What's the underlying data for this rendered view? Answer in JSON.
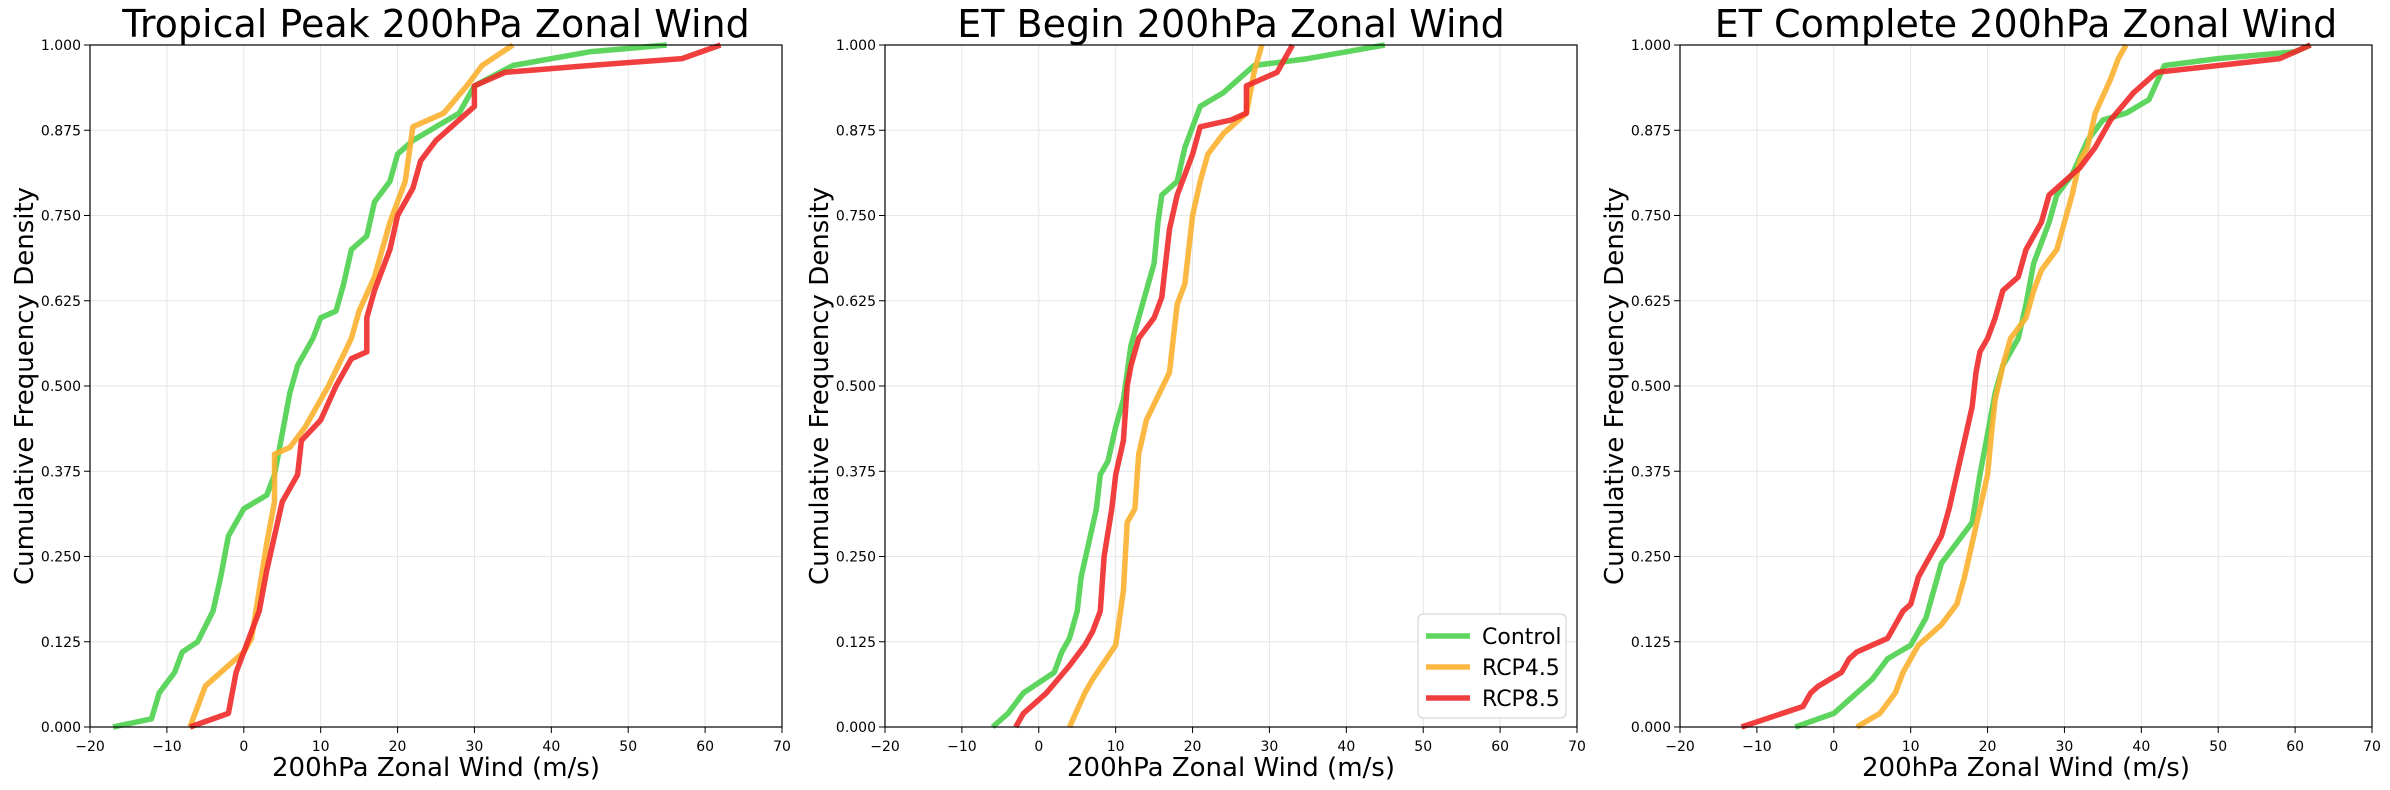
{
  "colors": {
    "Control": "#4cd04c",
    "RCP4.5": "#fbb02d",
    "RCP8.5": "#f02a2a",
    "grid": "#e6e6e6"
  },
  "legend": {
    "placement": "lower right",
    "entries": [
      "Control",
      "RCP4.5",
      "RCP8.5"
    ]
  },
  "chart_data": [
    {
      "type": "line",
      "title": "Tropical Peak 200hPa Zonal Wind",
      "xlabel": "200hPa Zonal Wind (m/s)",
      "ylabel": "Cumulative Frequency Density",
      "xlim": [
        -20,
        70
      ],
      "ylim": [
        0,
        1
      ],
      "xticks": [
        "−20",
        "−10",
        "0",
        "10",
        "20",
        "30",
        "40",
        "50",
        "60",
        "70"
      ],
      "yticks": [
        "0.000",
        "0.125",
        "0.250",
        "0.375",
        "0.500",
        "0.625",
        "0.750",
        "0.875",
        "1.000"
      ],
      "grid": true,
      "series": [
        {
          "name": "Control",
          "points": [
            [
              -17,
              0
            ],
            [
              -12,
              0.012
            ],
            [
              -11,
              0.05
            ],
            [
              -9,
              0.08
            ],
            [
              -8,
              0.11
            ],
            [
              -6,
              0.125
            ],
            [
              -4,
              0.17
            ],
            [
              -3,
              0.22
            ],
            [
              -2,
              0.28
            ],
            [
              -1,
              0.3
            ],
            [
              0,
              0.32
            ],
            [
              3,
              0.34
            ],
            [
              4,
              0.37
            ],
            [
              5,
              0.43
            ],
            [
              6,
              0.49
            ],
            [
              7,
              0.53
            ],
            [
              9,
              0.57
            ],
            [
              10,
              0.6
            ],
            [
              12,
              0.61
            ],
            [
              13,
              0.65
            ],
            [
              14,
              0.7
            ],
            [
              16,
              0.72
            ],
            [
              17,
              0.77
            ],
            [
              19,
              0.8
            ],
            [
              20,
              0.84
            ],
            [
              22,
              0.86
            ],
            [
              25,
              0.88
            ],
            [
              28,
              0.9
            ],
            [
              30,
              0.94
            ],
            [
              35,
              0.97
            ],
            [
              45,
              0.99
            ],
            [
              55,
              1.0
            ]
          ]
        },
        {
          "name": "RCP4.5",
          "points": [
            [
              -7,
              0
            ],
            [
              -5,
              0.06
            ],
            [
              -2,
              0.09
            ],
            [
              0,
              0.11
            ],
            [
              1,
              0.13
            ],
            [
              2,
              0.2
            ],
            [
              3,
              0.27
            ],
            [
              4,
              0.33
            ],
            [
              4,
              0.4
            ],
            [
              6,
              0.41
            ],
            [
              8,
              0.44
            ],
            [
              11,
              0.5
            ],
            [
              14,
              0.57
            ],
            [
              15,
              0.61
            ],
            [
              17,
              0.66
            ],
            [
              19,
              0.74
            ],
            [
              21,
              0.8
            ],
            [
              22,
              0.88
            ],
            [
              26,
              0.9
            ],
            [
              29,
              0.94
            ],
            [
              31,
              0.97
            ],
            [
              35,
              1.0
            ]
          ]
        },
        {
          "name": "RCP8.5",
          "points": [
            [
              -7,
              0
            ],
            [
              -2,
              0.02
            ],
            [
              -1,
              0.08
            ],
            [
              0,
              0.11
            ],
            [
              1,
              0.14
            ],
            [
              2,
              0.17
            ],
            [
              3,
              0.23
            ],
            [
              4,
              0.28
            ],
            [
              5,
              0.33
            ],
            [
              7,
              0.37
            ],
            [
              7.5,
              0.42
            ],
            [
              10,
              0.45
            ],
            [
              12,
              0.5
            ],
            [
              14,
              0.54
            ],
            [
              16,
              0.55
            ],
            [
              16,
              0.6
            ],
            [
              17,
              0.64
            ],
            [
              19,
              0.7
            ],
            [
              20,
              0.75
            ],
            [
              22,
              0.79
            ],
            [
              23,
              0.83
            ],
            [
              25,
              0.86
            ],
            [
              27,
              0.88
            ],
            [
              30,
              0.91
            ],
            [
              30,
              0.94
            ],
            [
              34,
              0.96
            ],
            [
              45,
              0.97
            ],
            [
              57,
              0.98
            ],
            [
              62,
              1.0
            ]
          ]
        }
      ]
    },
    {
      "type": "line",
      "title": "ET Begin 200hPa Zonal Wind",
      "xlabel": "200hPa Zonal Wind (m/s)",
      "ylabel": "Cumulative Frequency Density",
      "xlim": [
        -20,
        70
      ],
      "ylim": [
        0,
        1
      ],
      "xticks": [
        "−20",
        "−10",
        "0",
        "10",
        "20",
        "30",
        "40",
        "50",
        "60",
        "70"
      ],
      "yticks": [
        "0.000",
        "0.125",
        "0.250",
        "0.375",
        "0.500",
        "0.625",
        "0.750",
        "0.875",
        "1.000"
      ],
      "grid": true,
      "series": [
        {
          "name": "Control",
          "points": [
            [
              -6,
              0
            ],
            [
              -4,
              0.02
            ],
            [
              -2,
              0.05
            ],
            [
              2,
              0.08
            ],
            [
              3,
              0.11
            ],
            [
              4,
              0.13
            ],
            [
              5,
              0.17
            ],
            [
              5.5,
              0.22
            ],
            [
              6.5,
              0.27
            ],
            [
              7.5,
              0.32
            ],
            [
              8,
              0.37
            ],
            [
              9,
              0.39
            ],
            [
              10,
              0.44
            ],
            [
              11,
              0.48
            ],
            [
              11.5,
              0.52
            ],
            [
              12,
              0.56
            ],
            [
              13,
              0.6
            ],
            [
              14,
              0.64
            ],
            [
              15,
              0.68
            ],
            [
              15.5,
              0.74
            ],
            [
              16,
              0.78
            ],
            [
              18,
              0.8
            ],
            [
              19,
              0.85
            ],
            [
              20,
              0.88
            ],
            [
              21,
              0.91
            ],
            [
              24,
              0.93
            ],
            [
              26,
              0.95
            ],
            [
              28,
              0.97
            ],
            [
              35,
              0.98
            ],
            [
              40,
              0.99
            ],
            [
              45,
              1.0
            ]
          ]
        },
        {
          "name": "RCP4.5",
          "points": [
            [
              4,
              0
            ],
            [
              6,
              0.05
            ],
            [
              7,
              0.07
            ],
            [
              10,
              0.12
            ],
            [
              11,
              0.2
            ],
            [
              11.5,
              0.3
            ],
            [
              12.5,
              0.32
            ],
            [
              13,
              0.4
            ],
            [
              14,
              0.45
            ],
            [
              17,
              0.52
            ],
            [
              17.5,
              0.57
            ],
            [
              18,
              0.62
            ],
            [
              19,
              0.65
            ],
            [
              19.5,
              0.7
            ],
            [
              20,
              0.75
            ],
            [
              21,
              0.8
            ],
            [
              22,
              0.84
            ],
            [
              24,
              0.87
            ],
            [
              27,
              0.9
            ],
            [
              28,
              0.96
            ],
            [
              29,
              1.0
            ]
          ]
        },
        {
          "name": "RCP8.5",
          "points": [
            [
              -3,
              0
            ],
            [
              -2,
              0.02
            ],
            [
              1,
              0.05
            ],
            [
              4,
              0.09
            ],
            [
              6,
              0.12
            ],
            [
              7,
              0.14
            ],
            [
              8,
              0.17
            ],
            [
              8.5,
              0.25
            ],
            [
              9.5,
              0.32
            ],
            [
              10,
              0.37
            ],
            [
              11,
              0.42
            ],
            [
              11.5,
              0.5
            ],
            [
              12,
              0.53
            ],
            [
              13,
              0.57
            ],
            [
              15,
              0.6
            ],
            [
              16,
              0.63
            ],
            [
              16.5,
              0.68
            ],
            [
              17,
              0.73
            ],
            [
              18,
              0.78
            ],
            [
              19,
              0.81
            ],
            [
              20,
              0.84
            ],
            [
              21,
              0.88
            ],
            [
              25,
              0.89
            ],
            [
              27,
              0.9
            ],
            [
              27,
              0.94
            ],
            [
              31,
              0.96
            ],
            [
              32,
              0.98
            ],
            [
              33,
              1.0
            ]
          ]
        }
      ]
    },
    {
      "type": "line",
      "title": "ET Complete 200hPa Zonal Wind",
      "xlabel": "200hPa Zonal Wind (m/s)",
      "ylabel": "Cumulative Frequency Density",
      "xlim": [
        -20,
        70
      ],
      "ylim": [
        0,
        1
      ],
      "xticks": [
        "−20",
        "−10",
        "0",
        "10",
        "20",
        "30",
        "40",
        "50",
        "60",
        "70"
      ],
      "yticks": [
        "0.000",
        "0.125",
        "0.250",
        "0.375",
        "0.500",
        "0.625",
        "0.750",
        "0.875",
        "1.000"
      ],
      "grid": true,
      "series": [
        {
          "name": "Control",
          "points": [
            [
              -5,
              0
            ],
            [
              0,
              0.02
            ],
            [
              2,
              0.04
            ],
            [
              5,
              0.07
            ],
            [
              7,
              0.1
            ],
            [
              10,
              0.12
            ],
            [
              12,
              0.16
            ],
            [
              13,
              0.2
            ],
            [
              14,
              0.24
            ],
            [
              16,
              0.27
            ],
            [
              18,
              0.3
            ],
            [
              19,
              0.37
            ],
            [
              20,
              0.43
            ],
            [
              21,
              0.49
            ],
            [
              22,
              0.53
            ],
            [
              24,
              0.57
            ],
            [
              25,
              0.62
            ],
            [
              26,
              0.68
            ],
            [
              28,
              0.74
            ],
            [
              29,
              0.78
            ],
            [
              31,
              0.81
            ],
            [
              33,
              0.86
            ],
            [
              35,
              0.89
            ],
            [
              38,
              0.9
            ],
            [
              41,
              0.92
            ],
            [
              43,
              0.97
            ],
            [
              50,
              0.98
            ],
            [
              60,
              0.99
            ],
            [
              62,
              1.0
            ]
          ]
        },
        {
          "name": "RCP4.5",
          "points": [
            [
              3,
              0
            ],
            [
              6,
              0.02
            ],
            [
              8,
              0.05
            ],
            [
              9,
              0.08
            ],
            [
              11,
              0.12
            ],
            [
              14,
              0.15
            ],
            [
              16,
              0.18
            ],
            [
              17,
              0.22
            ],
            [
              18,
              0.27
            ],
            [
              19,
              0.32
            ],
            [
              20,
              0.37
            ],
            [
              20.5,
              0.43
            ],
            [
              21,
              0.48
            ],
            [
              22,
              0.53
            ],
            [
              23,
              0.57
            ],
            [
              25,
              0.6
            ],
            [
              26,
              0.64
            ],
            [
              27,
              0.67
            ],
            [
              29,
              0.7
            ],
            [
              30,
              0.74
            ],
            [
              31,
              0.78
            ],
            [
              32,
              0.83
            ],
            [
              33,
              0.85
            ],
            [
              34,
              0.9
            ],
            [
              36,
              0.95
            ],
            [
              37,
              0.98
            ],
            [
              38,
              1.0
            ]
          ]
        },
        {
          "name": "RCP8.5",
          "points": [
            [
              -12,
              0
            ],
            [
              -4,
              0.03
            ],
            [
              -3,
              0.05
            ],
            [
              -2,
              0.06
            ],
            [
              1,
              0.08
            ],
            [
              2,
              0.1
            ],
            [
              3,
              0.11
            ],
            [
              7,
              0.13
            ],
            [
              8,
              0.15
            ],
            [
              9,
              0.17
            ],
            [
              10,
              0.18
            ],
            [
              11,
              0.22
            ],
            [
              12,
              0.24
            ],
            [
              13,
              0.26
            ],
            [
              14,
              0.28
            ],
            [
              15,
              0.32
            ],
            [
              16,
              0.37
            ],
            [
              17,
              0.42
            ],
            [
              18,
              0.47
            ],
            [
              18.5,
              0.52
            ],
            [
              19,
              0.55
            ],
            [
              20,
              0.57
            ],
            [
              21,
              0.6
            ],
            [
              22,
              0.64
            ],
            [
              24,
              0.66
            ],
            [
              25,
              0.7
            ],
            [
              27,
              0.74
            ],
            [
              28,
              0.78
            ],
            [
              30,
              0.8
            ],
            [
              32,
              0.82
            ],
            [
              34,
              0.85
            ],
            [
              36,
              0.89
            ],
            [
              39,
              0.93
            ],
            [
              42,
              0.96
            ],
            [
              50,
              0.97
            ],
            [
              58,
              0.98
            ],
            [
              62,
              1.0
            ]
          ]
        }
      ]
    }
  ]
}
